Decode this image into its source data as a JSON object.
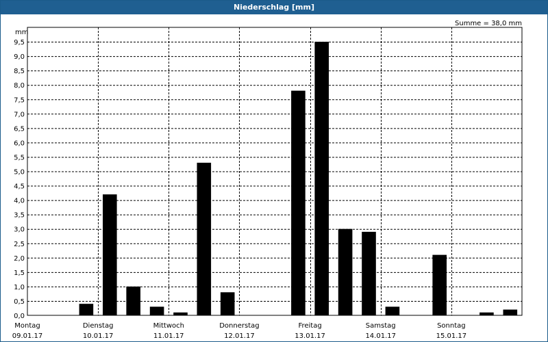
{
  "window": {
    "title": "Niederschlag [mm]"
  },
  "chart_data": {
    "type": "bar",
    "title": "Niederschlag [mm]",
    "ylabel": "mm",
    "annotation": "Summe = 38,0 mm",
    "ylim": [
      0,
      10
    ],
    "yticks": [
      "0,0",
      "0,5",
      "1,0",
      "1,5",
      "2,0",
      "2,5",
      "3,0",
      "3,5",
      "4,0",
      "4,5",
      "5,0",
      "5,5",
      "6,0",
      "6,5",
      "7,0",
      "7,5",
      "8,0",
      "8,5",
      "9,0",
      "9,5"
    ],
    "days": [
      {
        "name": "Montag",
        "date": "09.01.17"
      },
      {
        "name": "Dienstag",
        "date": "10.01.17"
      },
      {
        "name": "Mittwoch",
        "date": "11.01.17"
      },
      {
        "name": "Donnerstag",
        "date": "12.01.17"
      },
      {
        "name": "Freitag",
        "date": "13.01.17"
      },
      {
        "name": "Samstag",
        "date": "14.01.17"
      },
      {
        "name": "Sonntag",
        "date": "15.01.17"
      }
    ],
    "interval_hours": 8,
    "values": [
      0,
      0,
      0.4,
      4.2,
      1.0,
      0.3,
      0.1,
      5.3,
      0.8,
      0,
      0,
      7.8,
      9.5,
      3.0,
      2.9,
      0.3,
      0,
      2.1,
      0,
      0.1,
      0.2
    ],
    "colors": {
      "bar": "#000000",
      "grid": "#000000",
      "title_bg": "#1f5f91"
    }
  }
}
